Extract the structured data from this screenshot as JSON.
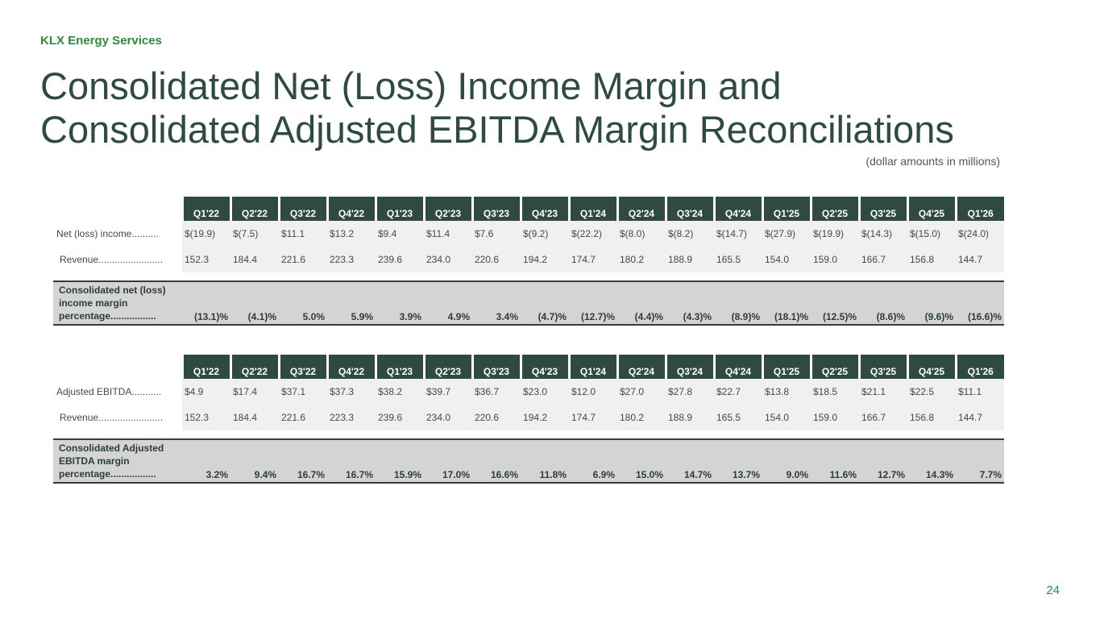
{
  "brand": "KLX Energy Services",
  "title_line1": "Consolidated Net (Loss) Income Margin and",
  "title_line2": "Consolidated Adjusted EBITDA Margin Reconciliations",
  "subtitle": "(dollar amounts in millions)",
  "page_number": "24",
  "quarters": [
    "Q1'22",
    "Q2'22",
    "Q3'22",
    "Q4'22",
    "Q1'23",
    "Q2'23",
    "Q3'23",
    "Q4'23",
    "Q1'24",
    "Q2'24",
    "Q3'24",
    "Q4'24",
    "Q1'25",
    "Q2'25",
    "Q3'25",
    "Q4'25",
    "Q1'26"
  ],
  "net_income_table": {
    "rows": [
      {
        "label": "Net (loss) income..........",
        "values": [
          "$(19.9)",
          "$(7.5)",
          "$11.1",
          "$13.2",
          "$9.4",
          "$11.4",
          "$7.6",
          "$(9.2)",
          "$(22.2)",
          "$(8.0)",
          "$(8.2)",
          "$(14.7)",
          "$(27.9)",
          "$(19.9)",
          "$(14.3)",
          "$(15.0)",
          "$(24.0)"
        ]
      },
      {
        "label": "Revenue........................",
        "values": [
          "152.3",
          "184.4",
          "221.6",
          "223.3",
          "239.6",
          "234.0",
          "220.6",
          "194.2",
          "174.7",
          "180.2",
          "188.9",
          "165.5",
          "154.0",
          "159.0",
          "166.7",
          "156.8",
          "144.7"
        ]
      }
    ],
    "total": {
      "label": "Consolidated net (loss) income margin percentage.................",
      "values": [
        "(13.1)%",
        "(4.1)%",
        "5.0%",
        "5.9%",
        "3.9%",
        "4.9%",
        "3.4%",
        "(4.7)%",
        "(12.7)%",
        "(4.4)%",
        "(4.3)%",
        "(8.9)%",
        "(18.1)%",
        "(12.5)%",
        "(8.6)%",
        "(9.6)%",
        "(16.6)%"
      ]
    }
  },
  "ebitda_table": {
    "rows": [
      {
        "label": "Adjusted EBITDA...........",
        "values": [
          "$4.9",
          "$17.4",
          "$37.1",
          "$37.3",
          "$38.2",
          "$39.7",
          "$36.7",
          "$23.0",
          "$12.0",
          "$27.0",
          "$27.8",
          "$22.7",
          "$13.8",
          "$18.5",
          "$21.1",
          "$22.5",
          "$11.1"
        ]
      },
      {
        "label": "Revenue........................",
        "values": [
          "152.3",
          "184.4",
          "221.6",
          "223.3",
          "239.6",
          "234.0",
          "220.6",
          "194.2",
          "174.7",
          "180.2",
          "188.9",
          "165.5",
          "154.0",
          "159.0",
          "166.7",
          "156.8",
          "144.7"
        ]
      }
    ],
    "total": {
      "label": "Consolidated Adjusted EBITDA margin percentage.................",
      "values": [
        "3.2%",
        "9.4%",
        "16.7%",
        "16.7%",
        "15.9%",
        "17.0%",
        "16.6%",
        "11.8%",
        "6.9%",
        "15.0%",
        "14.7%",
        "13.7%",
        "9.0%",
        "11.6%",
        "12.7%",
        "14.3%",
        "7.7%"
      ]
    }
  }
}
